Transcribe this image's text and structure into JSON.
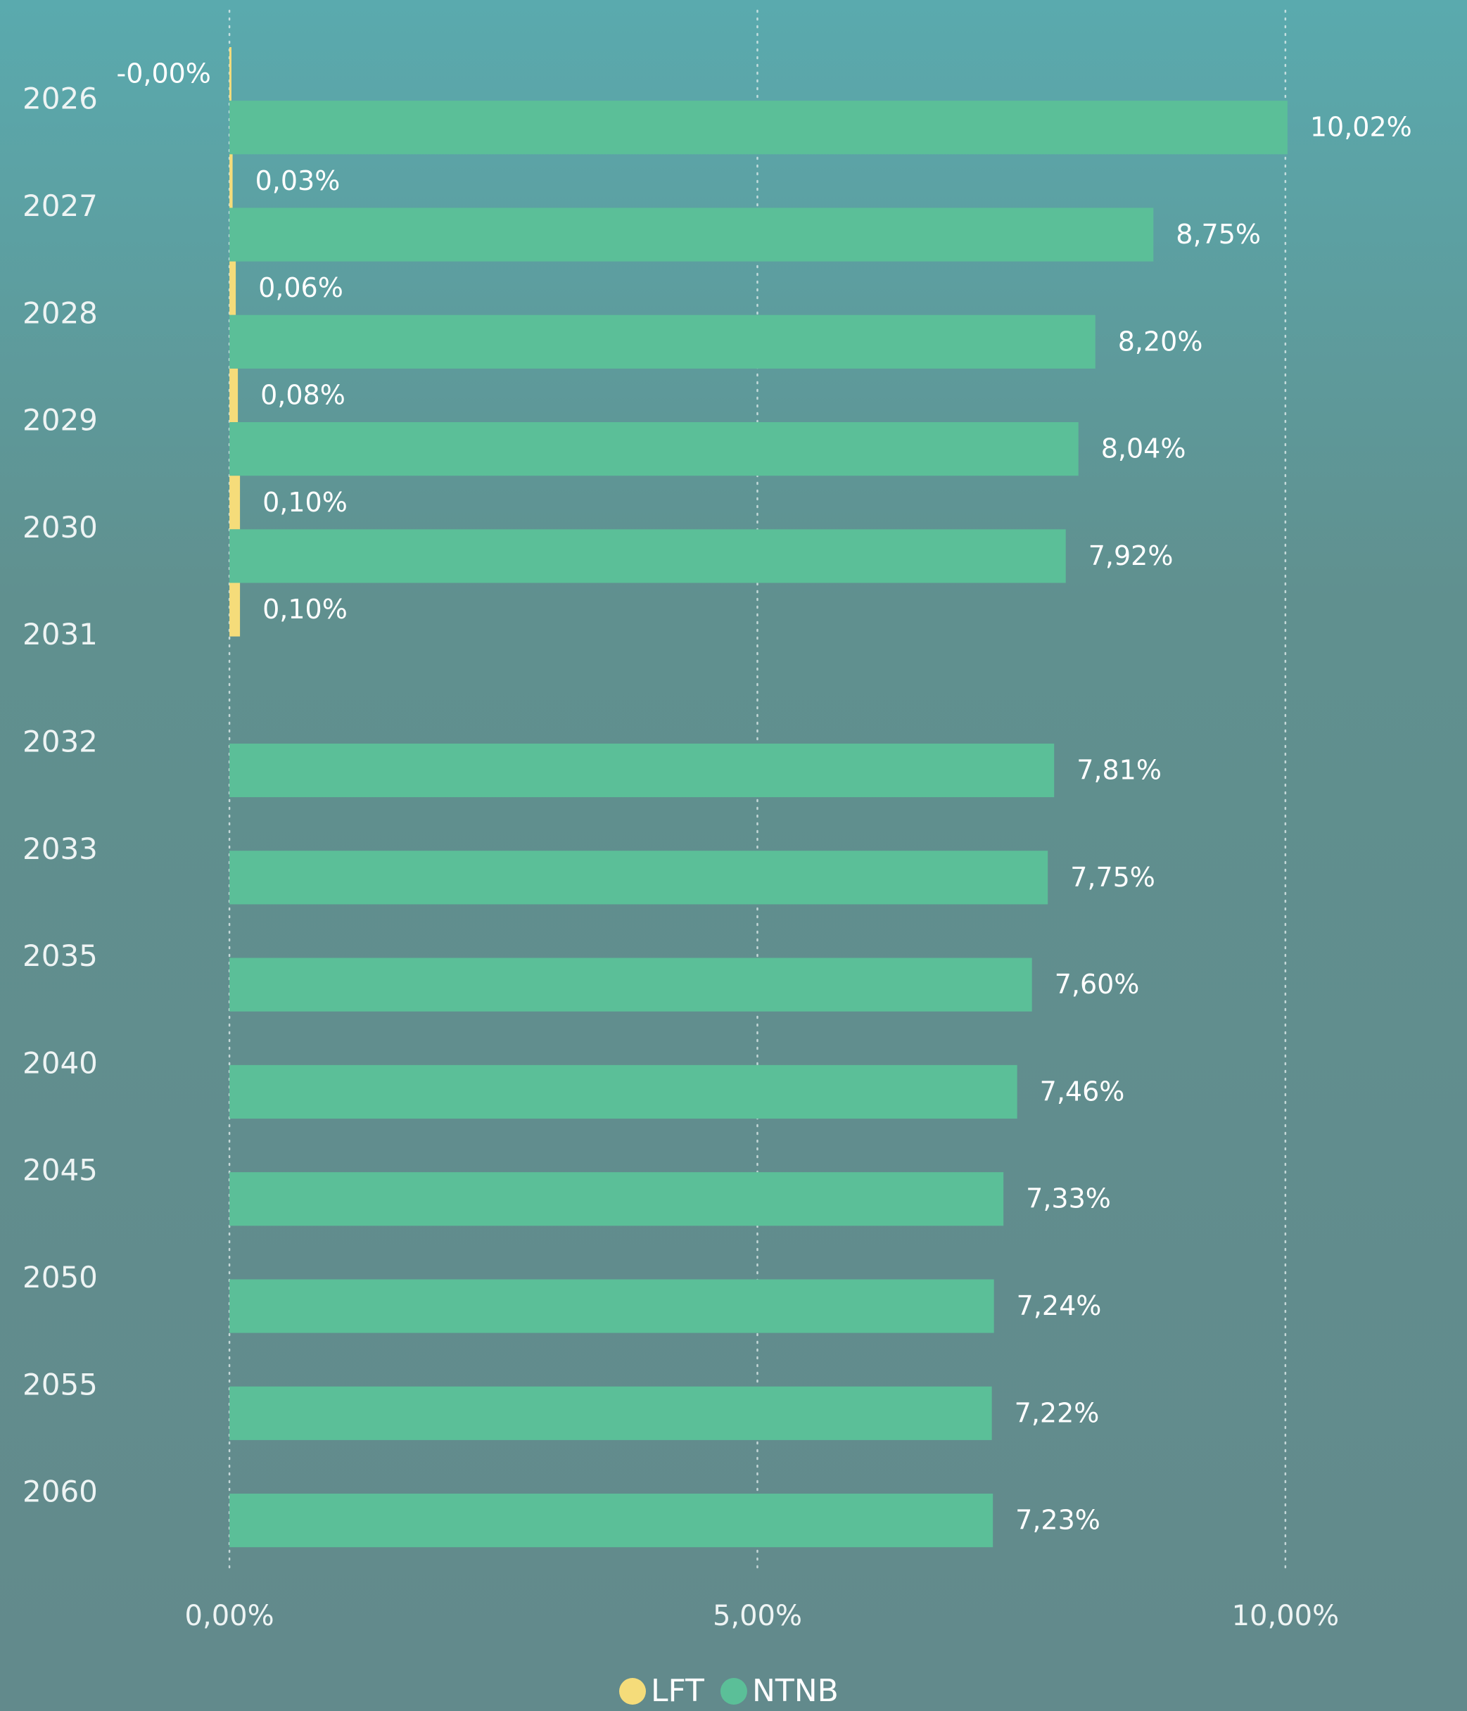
{
  "chart_data": {
    "type": "bar",
    "orientation": "horizontal",
    "categories": [
      "2026",
      "2027",
      "2028",
      "2029",
      "2030",
      "2031",
      "2032",
      "2033",
      "2035",
      "2040",
      "2045",
      "2050",
      "2055",
      "2060"
    ],
    "series": [
      {
        "name": "LFT",
        "color": "#f5dc7a",
        "values": [
          -0.001,
          0.03,
          0.06,
          0.08,
          0.1,
          0.1,
          null,
          null,
          null,
          null,
          null,
          null,
          null,
          null
        ],
        "value_labels": [
          "-0,00%",
          "0,03%",
          "0,06%",
          "0,08%",
          "0,10%",
          "0,10%",
          null,
          null,
          null,
          null,
          null,
          null,
          null,
          null
        ]
      },
      {
        "name": "NTNB",
        "color": "#5bbf98",
        "values": [
          10.02,
          8.75,
          8.2,
          8.04,
          7.92,
          null,
          7.81,
          7.75,
          7.6,
          7.46,
          7.33,
          7.24,
          7.22,
          7.23
        ],
        "value_labels": [
          "10,02%",
          "8,75%",
          "8,20%",
          "8,04%",
          "7,92%",
          null,
          "7,81%",
          "7,75%",
          "7,60%",
          "7,46%",
          "7,33%",
          "7,24%",
          "7,22%",
          "7,23%"
        ]
      }
    ],
    "xlim": [
      -1,
      11.5
    ],
    "xticks": [
      {
        "value": 0,
        "label": "0,00%"
      },
      {
        "value": 5,
        "label": "5,00%"
      },
      {
        "value": 10,
        "label": "10,00%"
      }
    ],
    "grid": true,
    "legend": "bottom"
  }
}
